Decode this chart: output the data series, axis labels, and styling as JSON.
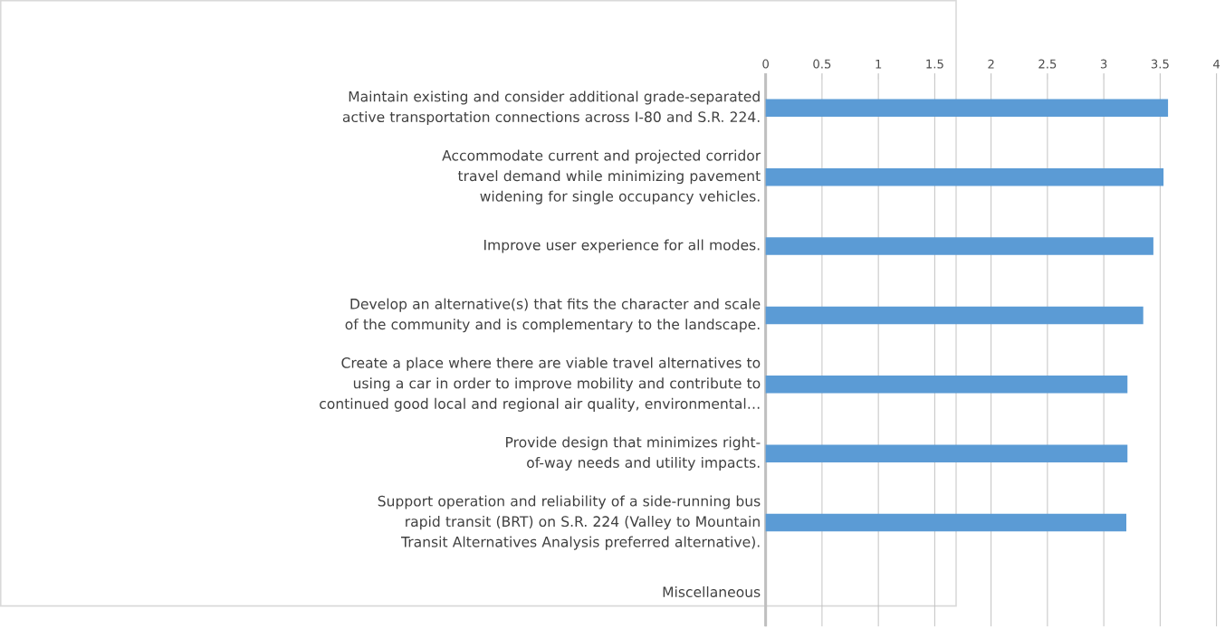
{
  "chart_data": {
    "type": "bar",
    "orientation": "horizontal",
    "grid": "x",
    "color": "#5b9bd5",
    "categories": [
      "Maintain existing and consider additional grade-separated active transportation connections across I-80 and S.R. 224.",
      "Accommodate current and projected corridor travel demand while minimizing pavement widening for single occupancy vehicles.",
      "Improve user experience for all modes.",
      "Develop an alternative(s) that fits the character and scale of the community and is complementary to the landscape.",
      "Create a place where there are viable travel alternatives to using a car in order to improve mobility and contribute to continued good local and regional air quality, environmental…",
      "Provide design that minimizes right-of-way needs and utility impacts.",
      "Support operation and reliability of a side-running bus rapid transit (BRT) on S.R. 224 (Valley to Mountain Transit Alternatives Analysis preferred alternative).",
      "Miscellaneous"
    ],
    "values": [
      3.57,
      3.53,
      3.44,
      3.35,
      3.21,
      3.21,
      3.2,
      null
    ],
    "xlim": [
      0,
      4
    ],
    "xticks": [
      0,
      0.5,
      1,
      1.5,
      2,
      2.5,
      3,
      3.5,
      4
    ]
  }
}
